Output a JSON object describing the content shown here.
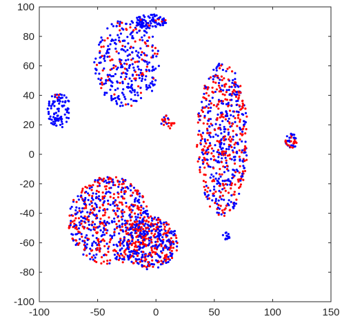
{
  "chart_data": {
    "type": "scatter",
    "title": "",
    "xlabel": "",
    "ylabel": "",
    "xlim": [
      -100,
      150
    ],
    "ylim": [
      -100,
      100
    ],
    "xticks": [
      -100,
      -50,
      0,
      50,
      100,
      150
    ],
    "yticks": [
      -100,
      -80,
      -60,
      -40,
      -20,
      0,
      20,
      40,
      60,
      80,
      100
    ],
    "grid": false,
    "legend": "none",
    "colors": {
      "series_a": "#0000ff",
      "series_b": "#ff0000",
      "axis": "#262626"
    },
    "clusters": [
      {
        "cx": -83,
        "cy": 30,
        "rx": 10,
        "ry": 12,
        "n_blue": 90,
        "n_red": 3
      },
      {
        "cx": -25,
        "cy": 62,
        "rx": 28,
        "ry": 30,
        "n_blue": 260,
        "n_red": 80
      },
      {
        "cx": -5,
        "cy": 90,
        "rx": 14,
        "ry": 5,
        "n_blue": 90,
        "n_red": 8
      },
      {
        "cx": 10,
        "cy": 22,
        "rx": 6,
        "ry": 5,
        "n_blue": 6,
        "n_red": 20
      },
      {
        "cx": 57,
        "cy": 10,
        "rx": 22,
        "ry": 52,
        "n_blue": 310,
        "n_red": 300
      },
      {
        "cx": 60,
        "cy": -56,
        "rx": 3,
        "ry": 3,
        "n_blue": 12,
        "n_red": 0
      },
      {
        "cx": 116,
        "cy": 9,
        "rx": 5,
        "ry": 5,
        "n_blue": 25,
        "n_red": 20
      },
      {
        "cx": -40,
        "cy": -45,
        "rx": 35,
        "ry": 30,
        "n_blue": 320,
        "n_red": 320
      },
      {
        "cx": -5,
        "cy": -60,
        "rx": 24,
        "ry": 18,
        "n_blue": 220,
        "n_red": 180
      }
    ]
  }
}
